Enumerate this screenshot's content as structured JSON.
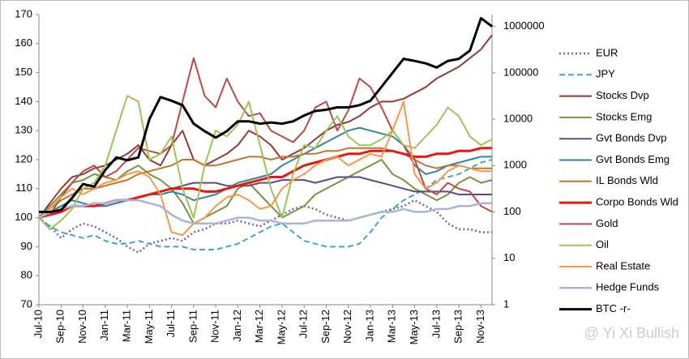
{
  "chart_data": {
    "type": "line",
    "watermark": "@ Yi Xi Bullish",
    "categories": [
      "Jul-10",
      null,
      "Sep-10",
      null,
      "Nov-10",
      null,
      "Jan-11",
      null,
      "Mar-11",
      null,
      "May-11",
      null,
      "Jul-11",
      null,
      "Sep-11",
      null,
      "Nov-11",
      null,
      "Jan-12",
      null,
      "Mar-12",
      null,
      "May-12",
      null,
      "Jul-12",
      null,
      "Sep-12",
      null,
      "Nov-12",
      null,
      "Jan-13",
      null,
      "Mar-13",
      null,
      "May-13",
      null,
      "Jul-13",
      null,
      "Sep-13",
      null,
      "Nov-13",
      null
    ],
    "ylim": [
      70,
      170
    ],
    "yticks": [
      70,
      80,
      90,
      100,
      110,
      120,
      130,
      140,
      150,
      160,
      170
    ],
    "y2lim": [
      1,
      1800000
    ],
    "y2ticks": [
      1,
      10,
      100,
      1000,
      10000,
      100000,
      1000000
    ],
    "y2_log": true,
    "legend": "right",
    "series": [
      {
        "name": "EUR",
        "color": "#7b5ea7",
        "dash": "dotted",
        "line_width": 2.5,
        "values": [
          100,
          97,
          93,
          96,
          98,
          97,
          95,
          93,
          90,
          88,
          91,
          92,
          93,
          92,
          95,
          96,
          98,
          98,
          99,
          98,
          97,
          99,
          101,
          103,
          104,
          103,
          101,
          100,
          99,
          100,
          101,
          102,
          103,
          104,
          106,
          104,
          102,
          98,
          96,
          96,
          95,
          95
        ]
      },
      {
        "name": "JPY",
        "color": "#3aa7c9",
        "dash": "dashed",
        "line_width": 2,
        "values": [
          100,
          97,
          95,
          94,
          93,
          94,
          92,
          91,
          91,
          92,
          91,
          90,
          90,
          90,
          89,
          89,
          89,
          90,
          91,
          93,
          95,
          97,
          98,
          95,
          92,
          91,
          90,
          90,
          90,
          91,
          95,
          100,
          103,
          106,
          108,
          110,
          113,
          114,
          115,
          117,
          119,
          120
        ]
      },
      {
        "name": "Stocks Dvp",
        "color": "#953735",
        "dash": "solid",
        "line_width": 2,
        "values": [
          100,
          105,
          110,
          114,
          115,
          117,
          118,
          120,
          122,
          125,
          120,
          118,
          125,
          130,
          120,
          118,
          120,
          122,
          125,
          130,
          128,
          125,
          120,
          122,
          124,
          127,
          130,
          132,
          133,
          135,
          138,
          140,
          140,
          141,
          143,
          145,
          148,
          150,
          152,
          155,
          158,
          163
        ]
      },
      {
        "name": "Stocks Emg",
        "color": "#77933c",
        "dash": "solid",
        "line_width": 2,
        "values": [
          100,
          104,
          108,
          112,
          113,
          115,
          114,
          113,
          116,
          118,
          115,
          113,
          110,
          105,
          98,
          100,
          102,
          104,
          110,
          112,
          108,
          104,
          100,
          102,
          104,
          108,
          110,
          112,
          114,
          116,
          118,
          120,
          115,
          113,
          110,
          108,
          106,
          108,
          112,
          114,
          112,
          113
        ]
      },
      {
        "name": "Gvt Bonds Dvp",
        "color": "#604a7b",
        "dash": "solid",
        "line_width": 2,
        "values": [
          100,
          102,
          103,
          104,
          104,
          104,
          104,
          105,
          106,
          107,
          108,
          109,
          110,
          111,
          112,
          112,
          112,
          111,
          111,
          111,
          112,
          112,
          113,
          113,
          113,
          112,
          113,
          114,
          114,
          114,
          113,
          112,
          111,
          110,
          109,
          109,
          109,
          109,
          108,
          108,
          108,
          108
        ]
      },
      {
        "name": "Gvt Bonds Emg",
        "color": "#31859c",
        "dash": "solid",
        "line_width": 2,
        "values": [
          100,
          102,
          104,
          106,
          105,
          104,
          104,
          105,
          106,
          107,
          108,
          108,
          109,
          108,
          106,
          107,
          108,
          110,
          112,
          113,
          114,
          115,
          118,
          120,
          122,
          124,
          126,
          128,
          130,
          131,
          130,
          129,
          128,
          125,
          118,
          115,
          116,
          118,
          119,
          120,
          121,
          121
        ]
      },
      {
        "name": "IL Bonds Wld",
        "color": "#c0742e",
        "dash": "solid",
        "line_width": 2,
        "values": [
          100,
          103,
          106,
          108,
          110,
          110,
          111,
          112,
          113,
          115,
          116,
          117,
          118,
          120,
          120,
          118,
          118,
          119,
          120,
          121,
          121,
          120,
          121,
          121,
          122,
          122,
          123,
          123,
          124,
          124,
          124,
          124,
          123,
          122,
          120,
          118,
          117,
          118,
          118,
          117,
          117,
          117
        ]
      },
      {
        "name": "Corpo Bonds Wld",
        "color": "#e8170f",
        "dash": "solid",
        "line_width": 3,
        "values": [
          100,
          101,
          102,
          104,
          104,
          104,
          105,
          106,
          106,
          107,
          108,
          109,
          110,
          110,
          110,
          109,
          109,
          110,
          111,
          112,
          113,
          114,
          114,
          116,
          118,
          119,
          120,
          121,
          122,
          122,
          123,
          123,
          123,
          122,
          121,
          121,
          122,
          122,
          123,
          123,
          124,
          124
        ]
      },
      {
        "name": "Gold",
        "color": "#b84a45",
        "dash": "solid",
        "line_width": 2,
        "values": [
          100,
          101,
          107,
          112,
          116,
          118,
          114,
          116,
          120,
          124,
          123,
          122,
          125,
          140,
          155,
          142,
          138,
          148,
          140,
          135,
          136,
          130,
          128,
          126,
          130,
          138,
          140,
          130,
          137,
          148,
          145,
          138,
          130,
          125,
          120,
          110,
          108,
          112,
          110,
          109,
          104,
          102
        ]
      },
      {
        "name": "Oil",
        "color": "#9bc451",
        "dash": "solid",
        "line_width": 2,
        "values": [
          100,
          96,
          99,
          103,
          110,
          112,
          118,
          130,
          142,
          140,
          120,
          122,
          128,
          110,
          100,
          118,
          130,
          128,
          132,
          140,
          125,
          110,
          100,
          115,
          125,
          124,
          130,
          135,
          128,
          125,
          125,
          127,
          130,
          125,
          124,
          128,
          132,
          138,
          135,
          128,
          125,
          127
        ]
      },
      {
        "name": "Real Estate",
        "color": "#f79646",
        "dash": "solid",
        "line_width": 2,
        "values": [
          100,
          103,
          107,
          110,
          108,
          110,
          112,
          113,
          115,
          116,
          114,
          108,
          95,
          94,
          98,
          100,
          104,
          107,
          108,
          106,
          103,
          104,
          110,
          113,
          115,
          118,
          120,
          121,
          118,
          120,
          122,
          121,
          130,
          140,
          115,
          110,
          112,
          116,
          118,
          117,
          116,
          116
        ]
      },
      {
        "name": "Hedge Funds",
        "color": "#a8b4d8",
        "dash": "solid",
        "line_width": 2.5,
        "values": [
          100,
          102,
          103,
          104,
          104,
          105,
          105,
          106,
          106,
          106,
          105,
          104,
          101,
          99,
          98,
          98,
          98,
          99,
          100,
          100,
          99,
          99,
          98,
          98,
          98,
          99,
          99,
          99,
          99,
          100,
          101,
          102,
          102,
          103,
          102,
          102,
          103,
          103,
          104,
          104,
          105,
          105
        ]
      },
      {
        "name": "BTC -r-",
        "color": "#000000",
        "dash": "solid",
        "line_width": 3,
        "axis": "y2",
        "values": [
          100,
          100,
          110,
          200,
          400,
          350,
          800,
          1500,
          1300,
          1500,
          10000,
          30000,
          25000,
          20000,
          8000,
          5500,
          4000,
          5500,
          9000,
          9000,
          8000,
          8500,
          8000,
          9000,
          12000,
          15000,
          16000,
          18000,
          18000,
          20000,
          25000,
          50000,
          100000,
          200000,
          180000,
          160000,
          130000,
          180000,
          200000,
          300000,
          1500000,
          1000000
        ]
      }
    ]
  }
}
